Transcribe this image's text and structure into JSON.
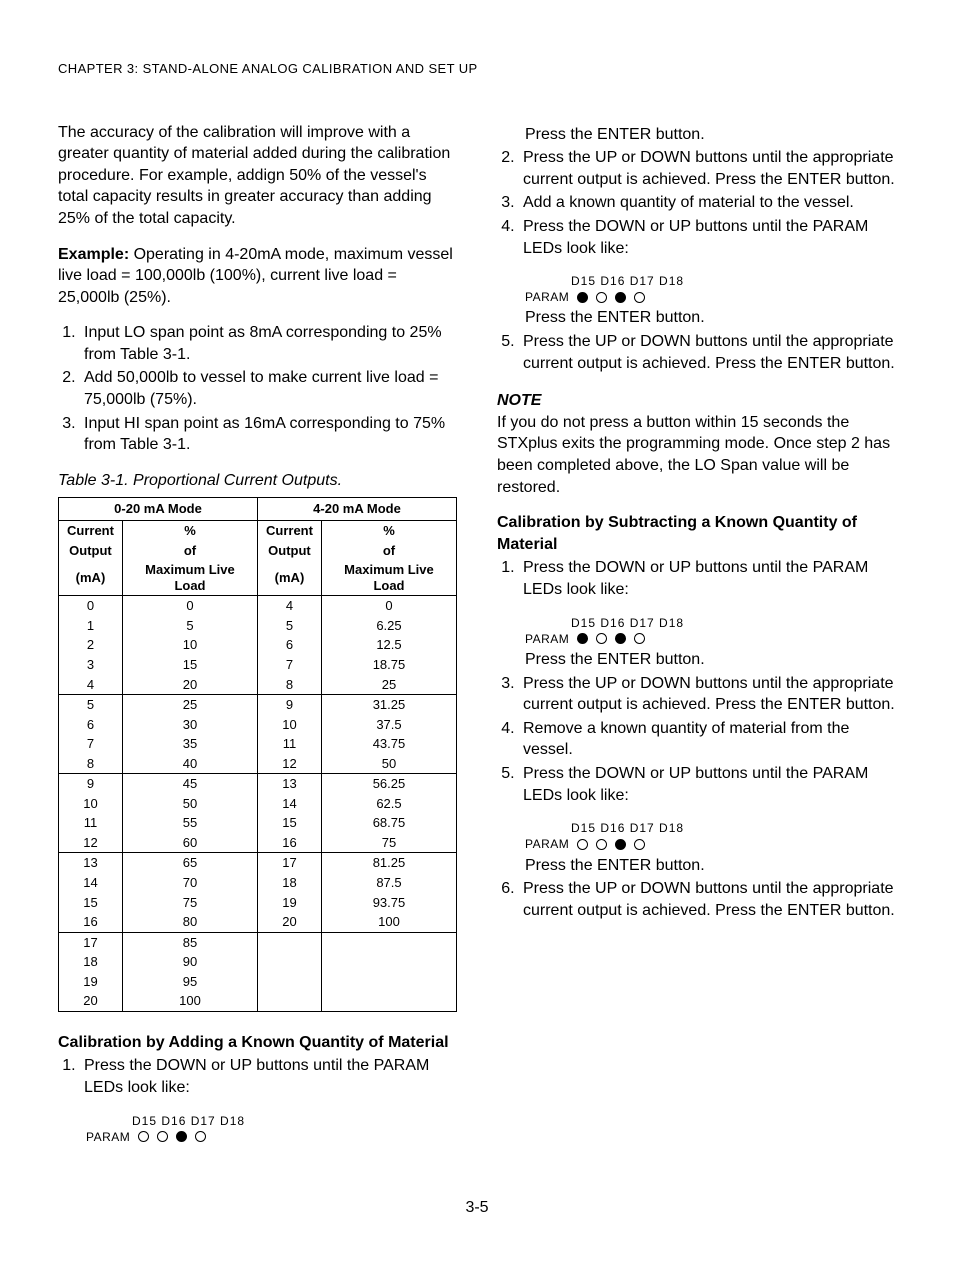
{
  "header": "CHAPTER 3:  STAND-ALONE ANALOG CALIBRATION AND SET UP",
  "pagenum": "3-5",
  "left": {
    "intro": "The accuracy of the calibration will improve with a greater quantity of material added during the calibration procedure.  For example, addign 50% of the vessel's total capacity results in greater accuracy than adding 25% of the total capacity.",
    "example_label": "Example:",
    "example_text": "  Operating in 4-20mA mode, maximum vessel live load = 100,000lb (100%), current live load = 25,000lb (25%).",
    "example_steps": [
      "Input LO span point as 8mA corresponding to 25% from Table 3-1.",
      "Add 50,000lb to vessel to make current live load = 75,000lb (75%).",
      "Input HI span point as 16mA corresponding to 75% from Table 3-1."
    ],
    "table_caption": "Table 3-1.  Proportional Current Outputs.",
    "table": {
      "group_headers": [
        "0-20 mA Mode",
        "4-20 mA Mode"
      ],
      "col_headers": [
        "Current Output (mA)",
        "% of Maximum Live Load",
        "Current Output (mA)",
        "% of Maximum Live Load"
      ],
      "blocks": [
        [
          [
            "0",
            "0",
            "4",
            "0"
          ],
          [
            "1",
            "5",
            "5",
            "6.25"
          ],
          [
            "2",
            "10",
            "6",
            "12.5"
          ],
          [
            "3",
            "15",
            "7",
            "18.75"
          ],
          [
            "4",
            "20",
            "8",
            "25"
          ]
        ],
        [
          [
            "5",
            "25",
            "9",
            "31.25"
          ],
          [
            "6",
            "30",
            "10",
            "37.5"
          ],
          [
            "7",
            "35",
            "11",
            "43.75"
          ],
          [
            "8",
            "40",
            "12",
            "50"
          ]
        ],
        [
          [
            "9",
            "45",
            "13",
            "56.25"
          ],
          [
            "10",
            "50",
            "14",
            "62.5"
          ],
          [
            "11",
            "55",
            "15",
            "68.75"
          ],
          [
            "12",
            "60",
            "16",
            "75"
          ]
        ],
        [
          [
            "13",
            "65",
            "17",
            "81.25"
          ],
          [
            "14",
            "70",
            "18",
            "87.5"
          ],
          [
            "15",
            "75",
            "19",
            "93.75"
          ],
          [
            "16",
            "80",
            "20",
            "100"
          ]
        ],
        [
          [
            "17",
            "85",
            "",
            ""
          ],
          [
            "18",
            "90",
            "",
            ""
          ],
          [
            "19",
            "95",
            "",
            ""
          ],
          [
            "20",
            "100",
            "",
            ""
          ]
        ]
      ]
    },
    "cal_add_title": "Calibration by Adding a Known Quantity of Material",
    "cal_add_step1": "Press the DOWN or UP buttons until  the PARAM LEDs look like:",
    "led_labels": "D15 D16 D17 D18",
    "param_label": "PARAM",
    "led1": [
      false,
      false,
      true,
      false
    ]
  },
  "right": {
    "press_enter": "Press the ENTER button.",
    "step2": "Press the UP or DOWN buttons until the appropriate current output is achieved.  Press the ENTER button.",
    "step3": "Add a known quantity of material to the vessel.",
    "step4": "Press the DOWN or UP buttons until  the PARAM LEDs look like:",
    "led_a": [
      true,
      false,
      true,
      false
    ],
    "step5": "Press the UP or DOWN buttons until the appropriate current output is achieved.  Press the ENTER button.",
    "note_title": "NOTE",
    "note_body": "If you do not press a button within 15 seconds the STXplus exits the programming mode.  Once step 2 has been completed above, the LO Span value will be restored.",
    "cal_sub_title": "Calibration by Subtracting a Known Quantity of Material",
    "sub_step1": "Press the DOWN or UP buttons until  the PARAM LEDs look like:",
    "led_b": [
      true,
      false,
      true,
      false
    ],
    "sub_step3": "Press the UP or DOWN buttons until the appropriate current output is achieved.  Press the ENTER button.",
    "sub_step4": "Remove a known quantity of material from the vessel.",
    "sub_step5": "Press the DOWN or UP buttons until  the PARAM LEDs look like:",
    "led_c": [
      false,
      false,
      true,
      false
    ],
    "sub_step6": "Press the UP or DOWN buttons until the appropriate current output is achieved.  Press the ENTER button."
  }
}
